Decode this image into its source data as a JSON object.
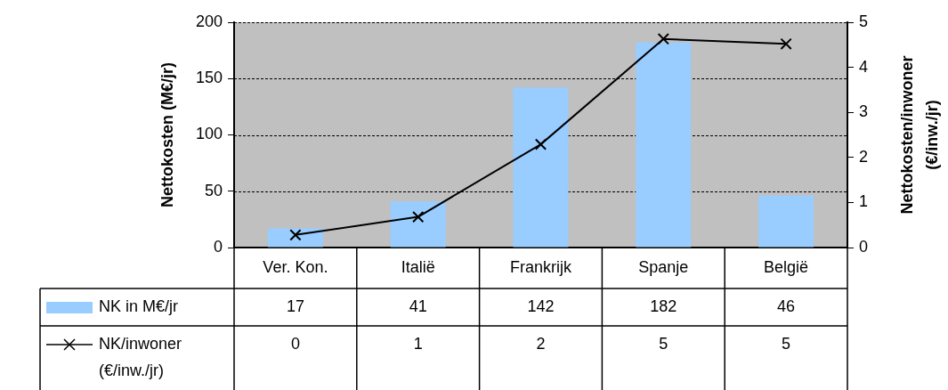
{
  "chart_data": {
    "type": "bar",
    "ylabel": "Nettokosten (M€/jr)",
    "y2label": "Nettokosten/inwoner (€/inw./jr)",
    "categories": [
      "Ver. Kon.",
      "Italië",
      "Frankrijk",
      "Spanje",
      "België"
    ],
    "series": [
      {
        "name": "NK in M€/jr",
        "color": "#99ccff",
        "values": [
          17,
          41,
          142,
          182,
          46
        ],
        "value_labels": [
          "17",
          "41",
          "142",
          "182",
          "46"
        ]
      },
      {
        "name": "NK/inwoner (€/inw./jr)",
        "type": "line",
        "axis": "y2",
        "color": "#000000",
        "marker": "cross",
        "values": [
          0.28,
          0.68,
          2.29,
          4.63,
          4.52
        ],
        "value_labels": [
          "0",
          "1",
          "2",
          "5",
          "5"
        ]
      }
    ],
    "ylim": [
      0,
      200
    ],
    "yticks": [
      0,
      50,
      100,
      150,
      200
    ],
    "y2lim": [
      0,
      5
    ],
    "y2ticks": [
      0,
      1,
      2,
      3,
      4,
      5
    ],
    "grid": "y",
    "legend": "bottom left"
  }
}
